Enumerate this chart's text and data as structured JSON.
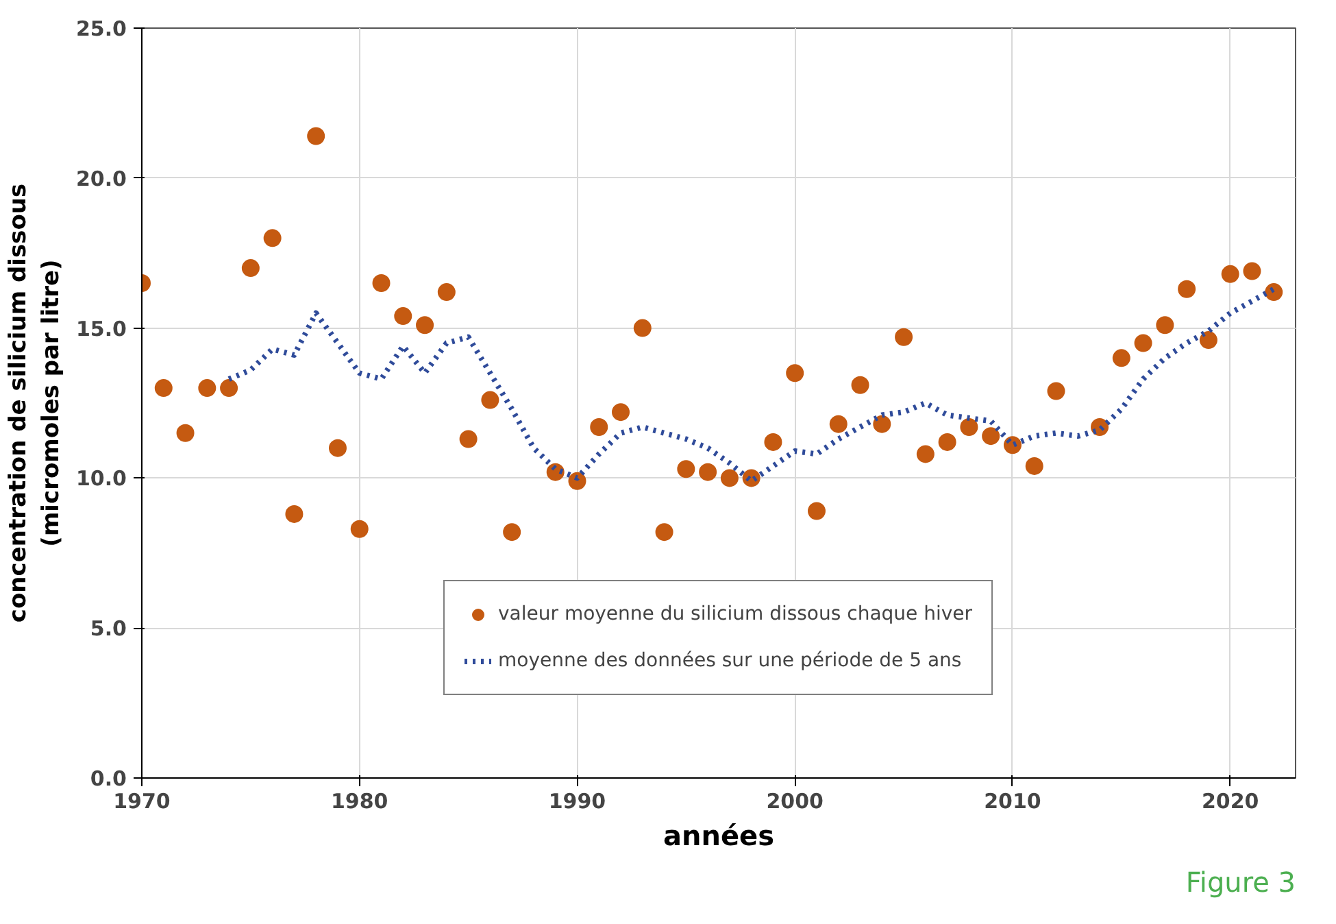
{
  "chart_data": {
    "type": "scatter",
    "xlabel": "années",
    "ylabel": "concentration de silicium dissous\n(micromoles par litre)",
    "xlim": [
      1970,
      2023
    ],
    "ylim": [
      0,
      25
    ],
    "xticks": [
      1970,
      1980,
      1990,
      2000,
      2010,
      2020
    ],
    "yticks": [
      {
        "value": 0,
        "label": "0.0"
      },
      {
        "value": 5,
        "label": "5.0"
      },
      {
        "value": 10,
        "label": "10.0"
      },
      {
        "value": 15,
        "label": "15.0"
      },
      {
        "value": 20,
        "label": "20.0"
      },
      {
        "value": 25,
        "label": "25.0"
      }
    ],
    "grid": true,
    "legend": "bottom",
    "series": [
      {
        "name": "valeur moyenne du silicium dissous chaque hiver",
        "marker": "circle",
        "color": "#c55a11",
        "x": [
          1970,
          1971,
          1972,
          1973,
          1974,
          1975,
          1976,
          1977,
          1978,
          1979,
          1980,
          1981,
          1982,
          1983,
          1984,
          1985,
          1986,
          1987,
          1989,
          1990,
          1991,
          1992,
          1993,
          1994,
          1995,
          1996,
          1997,
          1998,
          1999,
          2000,
          2001,
          2002,
          2003,
          2004,
          2005,
          2006,
          2007,
          2008,
          2009,
          2010,
          2011,
          2012,
          2014,
          2015,
          2016,
          2017,
          2018,
          2019,
          2020,
          2021,
          2022
        ],
        "values": [
          16.5,
          13.0,
          11.5,
          13.0,
          13.0,
          17.0,
          18.0,
          8.8,
          21.4,
          11.0,
          8.3,
          16.5,
          15.4,
          15.1,
          16.2,
          11.3,
          12.6,
          8.2,
          10.2,
          9.9,
          11.7,
          12.2,
          15.0,
          8.2,
          10.3,
          10.2,
          10.0,
          10.0,
          11.2,
          13.5,
          8.9,
          11.8,
          13.1,
          11.8,
          14.7,
          10.8,
          11.2,
          11.7,
          11.4,
          11.1,
          10.4,
          12.9,
          11.7,
          14.0,
          14.5,
          15.1,
          16.3,
          14.6,
          16.8,
          16.9,
          16.2
        ]
      },
      {
        "name": "moyenne des données sur une période de 5 ans",
        "type": "line",
        "marker": "none",
        "line_style": "dotted",
        "color": "#2f4b9a",
        "x": [
          1974,
          1975,
          1976,
          1977,
          1978,
          1979,
          1980,
          1981,
          1982,
          1983,
          1984,
          1985,
          1986,
          1987,
          1988,
          1989,
          1990,
          1991,
          1992,
          1993,
          1994,
          1995,
          1996,
          1997,
          1998,
          1999,
          2000,
          2001,
          2002,
          2003,
          2004,
          2005,
          2006,
          2007,
          2008,
          2009,
          2010,
          2011,
          2012,
          2013,
          2014,
          2015,
          2016,
          2017,
          2018,
          2019,
          2020,
          2021,
          2022
        ],
        "values": [
          13.3,
          13.6,
          14.3,
          14.1,
          15.5,
          14.5,
          13.5,
          13.3,
          14.4,
          13.5,
          14.5,
          14.7,
          13.5,
          12.3,
          11.0,
          10.3,
          10.0,
          10.8,
          11.5,
          11.7,
          11.5,
          11.3,
          11.0,
          10.5,
          9.9,
          10.4,
          10.9,
          10.8,
          11.3,
          11.7,
          12.1,
          12.2,
          12.5,
          12.1,
          12.0,
          11.9,
          11.1,
          11.4,
          11.5,
          11.4,
          11.6,
          12.3,
          13.3,
          14.0,
          14.5,
          14.9,
          15.5,
          15.9,
          16.3
        ]
      }
    ],
    "annotations": [
      "Figure 3"
    ]
  }
}
